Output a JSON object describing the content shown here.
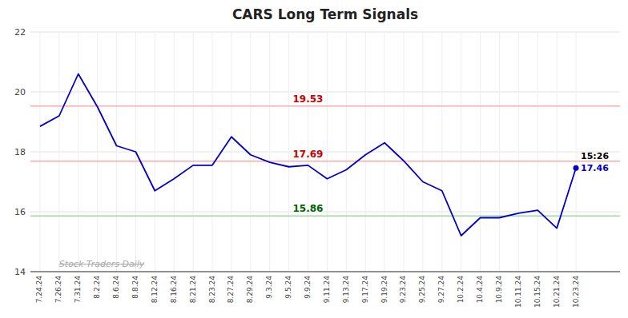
{
  "chart_data": {
    "type": "line",
    "title": "CARS Long Term Signals",
    "categories": [
      "7.24.24",
      "7.26.24",
      "7.31.24",
      "8.2.24",
      "8.6.24",
      "8.8.24",
      "8.12.24",
      "8.16.24",
      "8.21.24",
      "8.23.24",
      "8.27.24",
      "8.29.24",
      "9.3.24",
      "9.5.24",
      "9.9.24",
      "9.11.24",
      "9.13.24",
      "9.17.24",
      "9.19.24",
      "9.23.24",
      "9.25.24",
      "9.27.24",
      "10.2.24",
      "10.4.24",
      "10.9.24",
      "10.11.24",
      "10.15.24",
      "10.21.24",
      "10.23.24"
    ],
    "values": [
      18.85,
      19.2,
      20.6,
      19.5,
      18.2,
      18.0,
      16.7,
      17.1,
      17.55,
      17.55,
      18.5,
      17.9,
      17.65,
      17.5,
      17.55,
      17.1,
      17.4,
      17.9,
      18.3,
      17.7,
      17.0,
      16.7,
      15.2,
      15.8,
      15.8,
      15.95,
      16.05,
      15.45,
      17.46
    ],
    "color": "#0000cc",
    "ylim": [
      14,
      22
    ],
    "yticks": [
      14,
      16,
      18,
      20,
      22
    ],
    "grid": true,
    "reference_lines": [
      {
        "value": 19.53,
        "label": "19.53",
        "color": "#ffaaaa",
        "label_color": "#cc0000"
      },
      {
        "value": 17.69,
        "label": "17.69",
        "color": "#ffaaaa",
        "label_color": "#cc0000"
      },
      {
        "value": 15.86,
        "label": "15.86",
        "color": "#99dd99",
        "label_color": "#006600"
      }
    ],
    "annotations": [
      {
        "text": "15:26"
      },
      {
        "text": "17.46",
        "color": "#0000cc"
      }
    ],
    "watermark": "Stock Traders Daily"
  }
}
